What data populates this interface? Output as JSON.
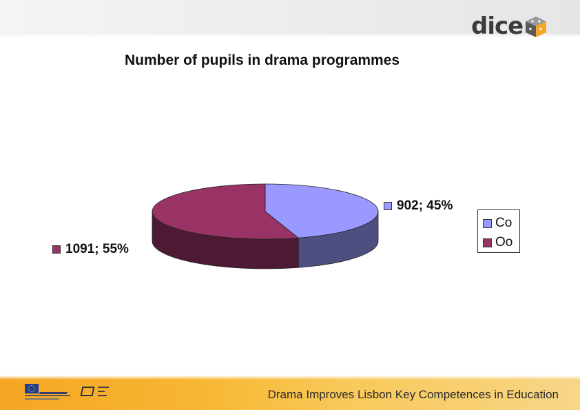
{
  "header": {
    "logo_text": "dice"
  },
  "chart_data": {
    "type": "pie",
    "title": "Number of pupils in drama programmes",
    "categories": [
      "Co",
      "Oo"
    ],
    "values": [
      902,
      1091
    ],
    "percentages": [
      45,
      55
    ],
    "data_labels": [
      "902; 45%",
      "1091; 55%"
    ],
    "colors": [
      "#9999ff",
      "#993366"
    ],
    "side_colors": [
      "#4e4e80",
      "#4e1a33"
    ],
    "legend_position": "right",
    "three_d": true
  },
  "footer": {
    "tagline": "Drama Improves Lisbon Key Competences in Education"
  },
  "colors": {
    "footer_orange": "#f5a623",
    "logo_orange": "#f5a623"
  }
}
